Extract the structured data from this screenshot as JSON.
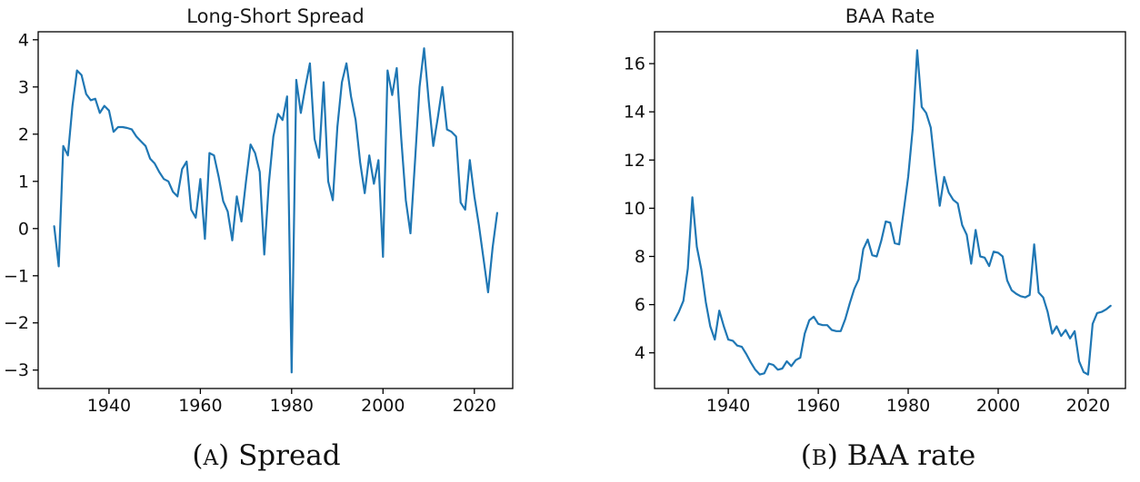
{
  "figure": {
    "background": "#ffffff",
    "panel_captions": [
      {
        "open": "(",
        "letter": "A",
        "close": ")",
        "text": "Spread"
      },
      {
        "open": "(",
        "letter": "B",
        "close": ")",
        "text": "BAA rate"
      }
    ]
  },
  "chart_data": [
    {
      "id": "spread",
      "type": "line",
      "title": "Long-Short Spread",
      "xlabel": "",
      "ylabel": "",
      "grid": false,
      "legend": null,
      "line_color": "#1f77b4",
      "xlim": [
        1924.5,
        2028.4
      ],
      "ylim": [
        -3.39,
        4.17
      ],
      "xticks": [
        1940,
        1960,
        1980,
        2000,
        2020
      ],
      "xtick_labels": [
        "1940",
        "1960",
        "1980",
        "2000",
        "2020"
      ],
      "yticks": [
        -3,
        -2,
        -1,
        0,
        1,
        2,
        3,
        4
      ],
      "ytick_labels": [
        "−3",
        "−2",
        "−1",
        "0",
        "1",
        "2",
        "3",
        "4"
      ],
      "series": [
        {
          "name": "long_short_spread",
          "x": [
            1928,
            1929,
            1930,
            1931,
            1932,
            1933,
            1934,
            1935,
            1936,
            1937,
            1938,
            1939,
            1940,
            1941,
            1942,
            1943,
            1944,
            1945,
            1946,
            1947,
            1948,
            1949,
            1950,
            1951,
            1952,
            1953,
            1954,
            1955,
            1956,
            1957,
            1958,
            1959,
            1960,
            1961,
            1962,
            1963,
            1964,
            1965,
            1966,
            1967,
            1968,
            1969,
            1970,
            1971,
            1972,
            1973,
            1974,
            1975,
            1976,
            1977,
            1978,
            1979,
            1980,
            1981,
            1982,
            1983,
            1984,
            1985,
            1986,
            1987,
            1988,
            1989,
            1990,
            1991,
            1992,
            1993,
            1994,
            1995,
            1996,
            1997,
            1998,
            1999,
            2000,
            2001,
            2002,
            2003,
            2004,
            2005,
            2006,
            2007,
            2008,
            2009,
            2010,
            2011,
            2012,
            2013,
            2014,
            2015,
            2016,
            2017,
            2018,
            2019,
            2020,
            2021,
            2022,
            2023,
            2024,
            2025
          ],
          "y": [
            0.05,
            -0.8,
            1.75,
            1.55,
            2.6,
            3.35,
            3.25,
            2.85,
            2.72,
            2.75,
            2.45,
            2.6,
            2.5,
            2.05,
            2.15,
            2.15,
            2.13,
            2.1,
            1.95,
            1.85,
            1.75,
            1.48,
            1.38,
            1.2,
            1.05,
            1.0,
            0.78,
            0.68,
            1.26,
            1.42,
            0.4,
            0.23,
            1.05,
            -0.22,
            1.6,
            1.55,
            1.1,
            0.58,
            0.36,
            -0.25,
            0.68,
            0.15,
            1.0,
            1.78,
            1.6,
            1.2,
            -0.55,
            0.95,
            1.95,
            2.43,
            2.3,
            2.8,
            -3.05,
            3.15,
            2.45,
            3.0,
            3.5,
            1.9,
            1.5,
            3.1,
            1.0,
            0.6,
            2.15,
            3.1,
            3.5,
            2.8,
            2.3,
            1.4,
            0.75,
            1.55,
            0.95,
            1.45,
            -0.6,
            3.35,
            2.83,
            3.4,
            1.9,
            0.6,
            -0.1,
            1.42,
            3.0,
            3.82,
            2.7,
            1.75,
            2.35,
            3.0,
            2.1,
            2.05,
            1.95,
            0.55,
            0.4,
            1.45,
            0.68,
            0.07,
            -0.63,
            -1.35,
            -0.4,
            0.33
          ]
        }
      ]
    },
    {
      "id": "baa",
      "type": "line",
      "title": "BAA Rate",
      "xlabel": "",
      "ylabel": "",
      "grid": false,
      "legend": null,
      "line_color": "#1f77b4",
      "xlim": [
        1923.6,
        2028.3
      ],
      "ylim": [
        2.52,
        17.32
      ],
      "xticks": [
        1940,
        1960,
        1980,
        2000,
        2020
      ],
      "xtick_labels": [
        "1940",
        "1960",
        "1980",
        "2000",
        "2020"
      ],
      "yticks": [
        4,
        6,
        8,
        10,
        12,
        14,
        16
      ],
      "ytick_labels": [
        "4",
        "6",
        "8",
        "10",
        "12",
        "14",
        "16"
      ],
      "series": [
        {
          "name": "baa_rate",
          "x": [
            1928,
            1929,
            1930,
            1931,
            1932,
            1933,
            1934,
            1935,
            1936,
            1937,
            1938,
            1939,
            1940,
            1941,
            1942,
            1943,
            1944,
            1945,
            1946,
            1947,
            1948,
            1949,
            1950,
            1951,
            1952,
            1953,
            1954,
            1955,
            1956,
            1957,
            1958,
            1959,
            1960,
            1961,
            1962,
            1963,
            1964,
            1965,
            1966,
            1967,
            1968,
            1969,
            1970,
            1971,
            1972,
            1973,
            1974,
            1975,
            1976,
            1977,
            1978,
            1979,
            1980,
            1981,
            1982,
            1983,
            1984,
            1985,
            1986,
            1987,
            1988,
            1989,
            1990,
            1991,
            1992,
            1993,
            1994,
            1995,
            1996,
            1997,
            1998,
            1999,
            2000,
            2001,
            2002,
            2003,
            2004,
            2005,
            2006,
            2007,
            2008,
            2009,
            2010,
            2011,
            2012,
            2013,
            2014,
            2015,
            2016,
            2017,
            2018,
            2019,
            2020,
            2021,
            2022,
            2023,
            2024,
            2025
          ],
          "y": [
            5.35,
            5.7,
            6.15,
            7.5,
            10.45,
            8.4,
            7.45,
            6.1,
            5.1,
            4.55,
            5.75,
            5.1,
            4.55,
            4.5,
            4.3,
            4.25,
            3.95,
            3.6,
            3.3,
            3.1,
            3.15,
            3.55,
            3.5,
            3.3,
            3.35,
            3.65,
            3.45,
            3.7,
            3.8,
            4.8,
            5.35,
            5.5,
            5.2,
            5.15,
            5.15,
            4.95,
            4.9,
            4.9,
            5.4,
            6.05,
            6.65,
            7.05,
            8.3,
            8.7,
            8.05,
            8.0,
            8.65,
            9.45,
            9.4,
            8.55,
            8.5,
            9.9,
            11.3,
            13.3,
            16.55,
            14.2,
            13.95,
            13.35,
            11.65,
            10.1,
            11.3,
            10.65,
            10.35,
            10.2,
            9.3,
            8.9,
            7.7,
            9.1,
            8.0,
            7.95,
            7.6,
            8.2,
            8.15,
            8.0,
            7.0,
            6.6,
            6.45,
            6.35,
            6.3,
            6.4,
            8.5,
            6.5,
            6.3,
            5.7,
            4.8,
            5.1,
            4.7,
            4.95,
            4.6,
            4.9,
            3.65,
            3.2,
            3.1,
            5.2,
            5.65,
            5.7,
            5.8,
            5.95
          ]
        }
      ]
    }
  ]
}
